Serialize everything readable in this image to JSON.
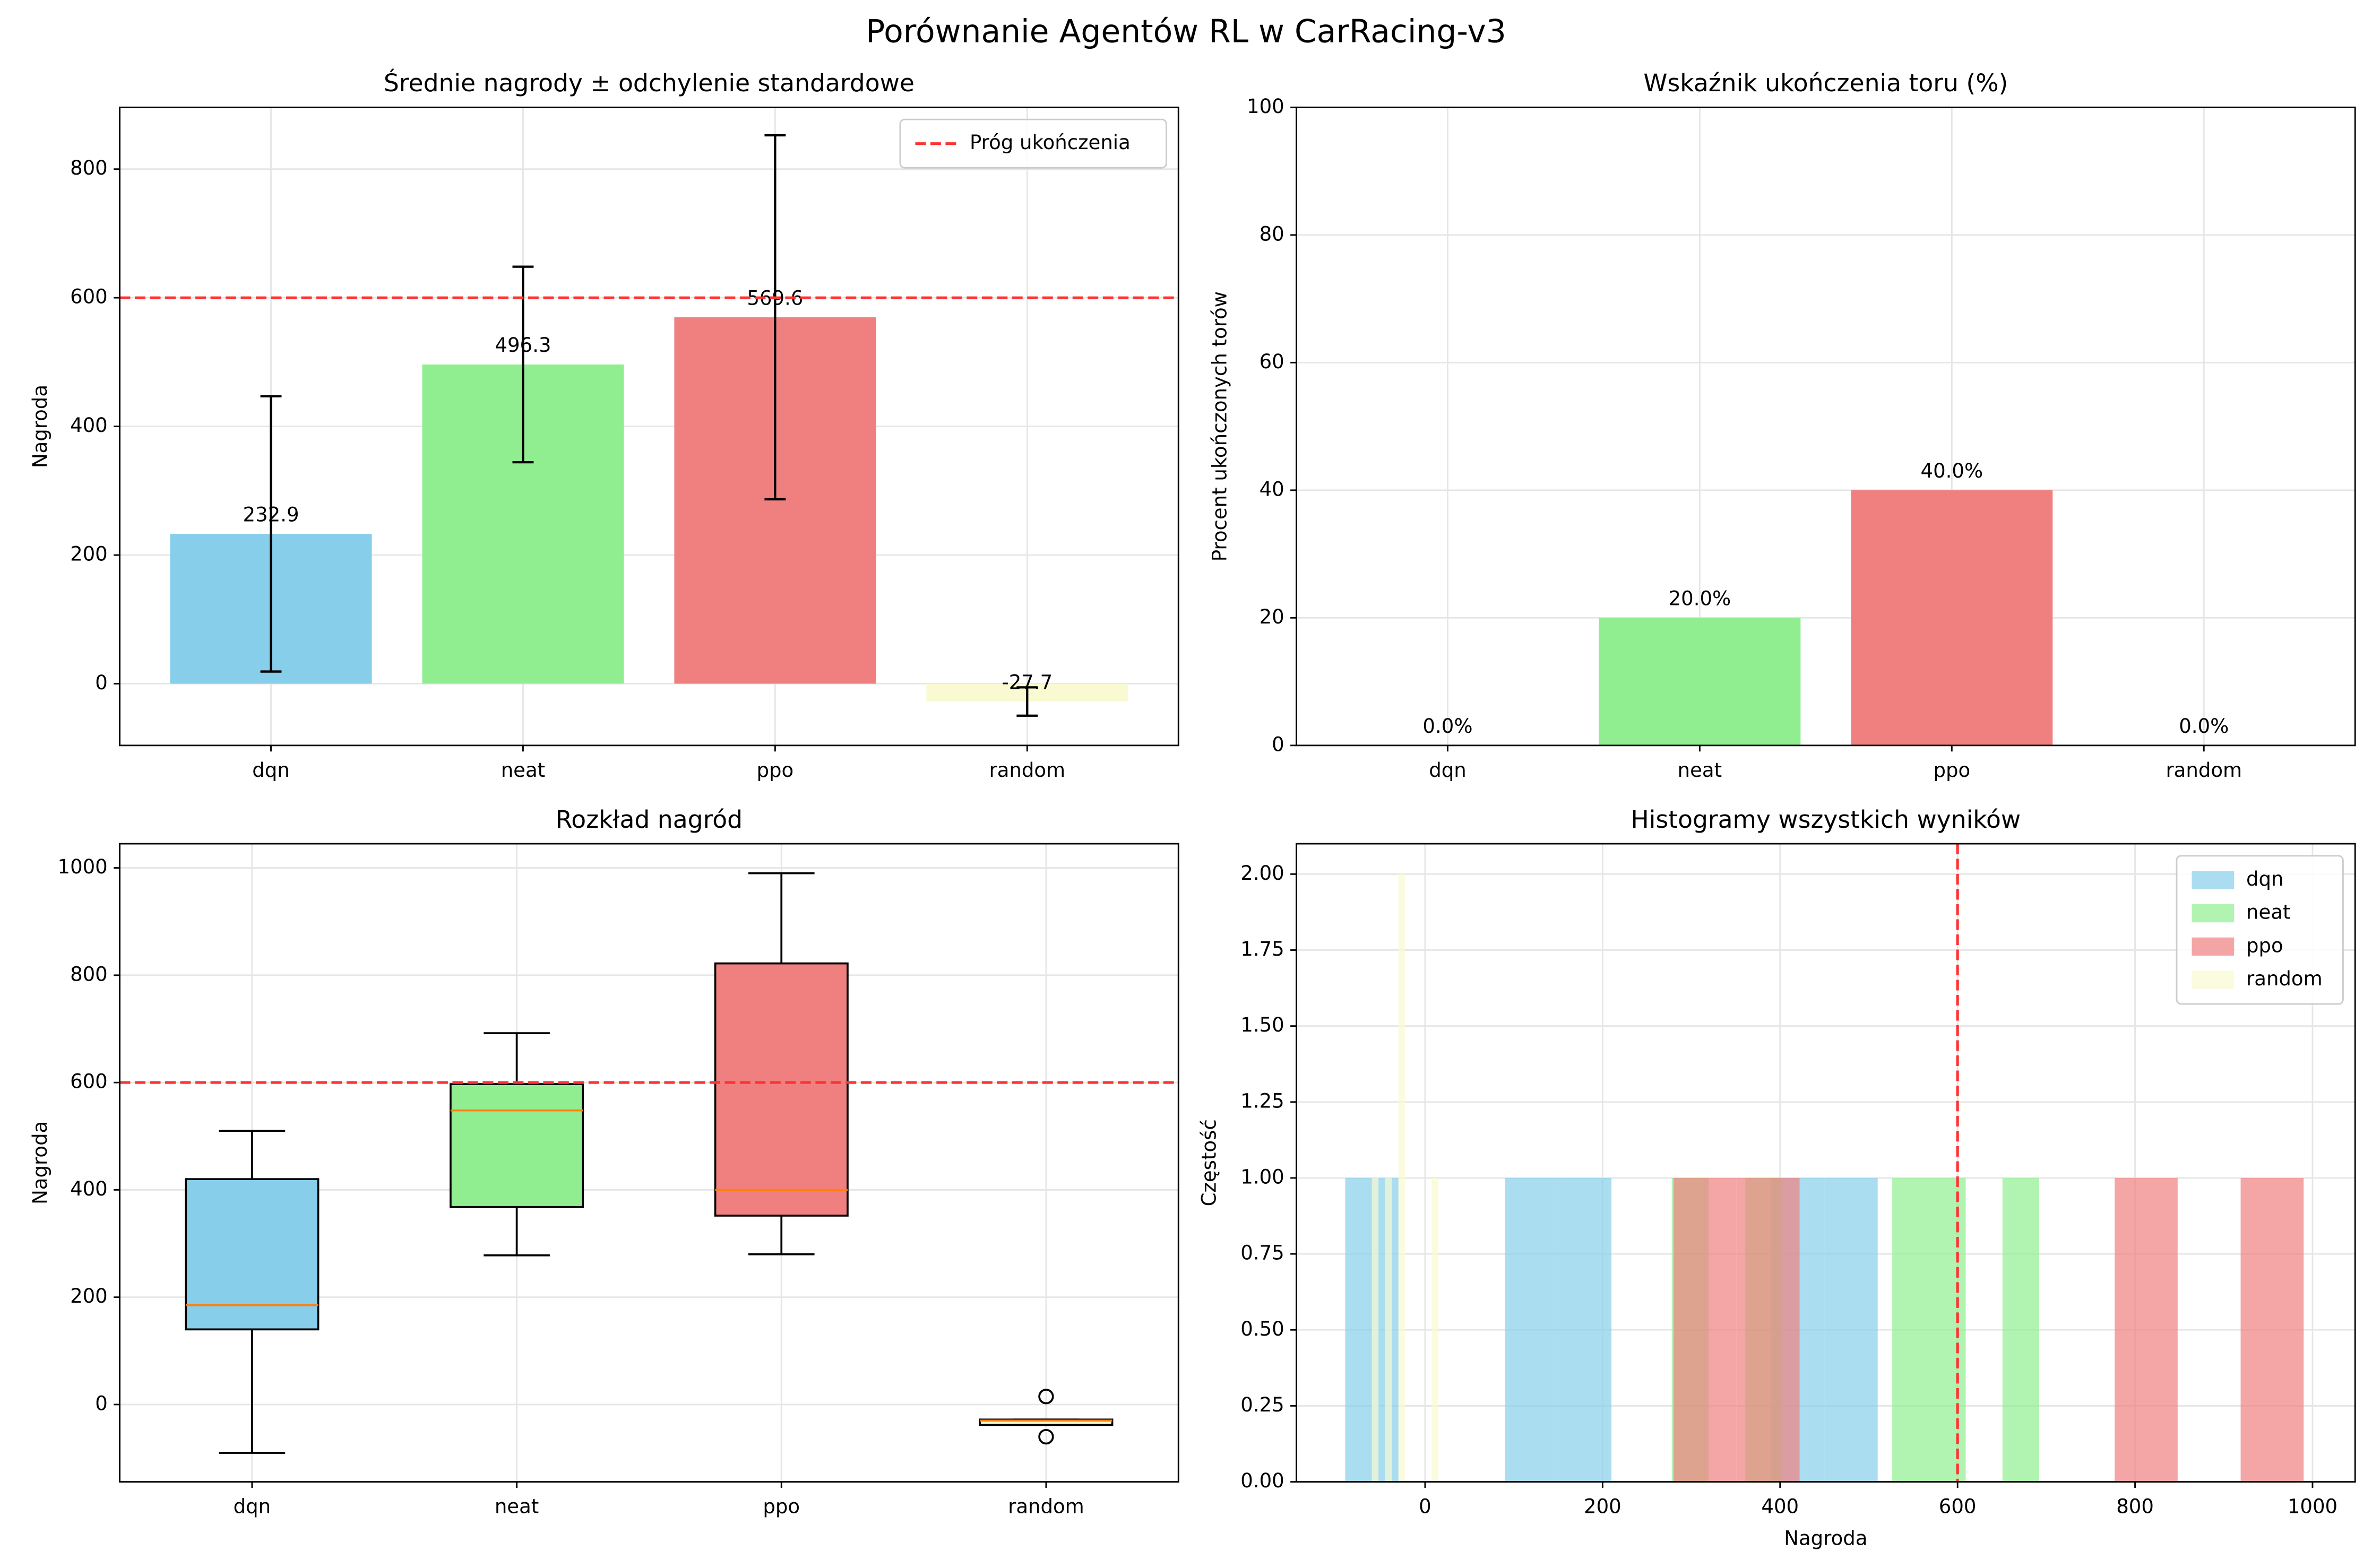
{
  "title": "Porównanie Agentów RL w CarRacing-v3",
  "chart_data": [
    {
      "type": "bar",
      "title": "Średnie nagrody ± odchylenie standardowe",
      "ylabel": "Nagroda",
      "categories": [
        "dqn",
        "neat",
        "ppo",
        "random"
      ],
      "values": [
        232.9,
        496.3,
        569.6,
        -27.7
      ],
      "errors": [
        214,
        152,
        283,
        22
      ],
      "colors": [
        "#87ceeb",
        "#90ee90",
        "#f08080",
        "#fafad2"
      ],
      "threshold": {
        "value": 600,
        "label": "Próg ukończenia",
        "color": "#ff3333"
      },
      "legend": "upper right",
      "ylim": [
        -96,
        896
      ],
      "yticks": [
        0,
        200,
        400,
        600,
        800
      ],
      "grid": true
    },
    {
      "type": "bar",
      "title": "Wskaźnik ukończenia toru (%)",
      "ylabel": "Procent ukończonych torów",
      "categories": [
        "dqn",
        "neat",
        "ppo",
        "random"
      ],
      "values": [
        0,
        20,
        40,
        0
      ],
      "value_labels": [
        "0.0%",
        "20.0%",
        "40.0%",
        "0.0%"
      ],
      "colors": [
        "#87ceeb",
        "#90ee90",
        "#f08080",
        "#fafad2"
      ],
      "ylim": [
        0,
        100
      ],
      "yticks": [
        0,
        20,
        40,
        60,
        80,
        100
      ],
      "grid": true
    },
    {
      "type": "box",
      "title": "Rozkład nagród",
      "ylabel": "Nagroda",
      "categories": [
        "dqn",
        "neat",
        "ppo",
        "random"
      ],
      "boxes": [
        {
          "min": -90,
          "q1": 140,
          "median": 185,
          "q3": 420,
          "max": 510,
          "outliers": []
        },
        {
          "min": 278,
          "q1": 368,
          "median": 548,
          "q3": 597,
          "max": 692,
          "outliers": []
        },
        {
          "min": 280,
          "q1": 352,
          "median": 400,
          "q3": 822,
          "max": 990,
          "outliers": []
        },
        {
          "min": -38,
          "q1": -38,
          "median": -30,
          "q3": -28,
          "max": -28,
          "outliers": [
            15,
            -60
          ]
        }
      ],
      "colors": [
        "#87ceeb",
        "#90ee90",
        "#f08080",
        "#fafad2"
      ],
      "median_color": "#ff7f0e",
      "threshold": {
        "value": 600,
        "color": "#ff3333"
      },
      "ylim": [
        -144,
        1045
      ],
      "yticks": [
        0,
        200,
        400,
        600,
        800,
        1000
      ],
      "grid": true
    },
    {
      "type": "histogram",
      "title": "Histogramy wszystkich wyników",
      "xlabel": "Nagroda",
      "ylabel": "Częstość",
      "series": [
        {
          "name": "dqn",
          "color": "#87ceeb",
          "bins": [
            -90,
            -30,
            30,
            90,
            150,
            210,
            270,
            330,
            390,
            450,
            510
          ],
          "counts": [
            1,
            0,
            0,
            1,
            1,
            0,
            0,
            0,
            1,
            1
          ]
        },
        {
          "name": "neat",
          "color": "#90ee90",
          "bins": [
            278,
            319.4,
            360.8,
            402.2,
            443.6,
            485,
            526.4,
            567.8,
            609.2,
            650.6,
            692
          ],
          "counts": [
            1,
            0,
            1,
            0,
            0,
            0,
            1,
            1,
            0,
            1
          ]
        },
        {
          "name": "ppo",
          "color": "#f08080",
          "bins": [
            280,
            351,
            422,
            493,
            564,
            635,
            706,
            777,
            848,
            919,
            990
          ],
          "counts": [
            1,
            1,
            0,
            0,
            0,
            0,
            0,
            1,
            0,
            1
          ]
        },
        {
          "name": "random",
          "color": "#fafad2",
          "bins": [
            -60,
            -52.5,
            -45,
            -37.5,
            -30,
            -22.5,
            -15,
            -7.5,
            0,
            7.5,
            15
          ],
          "counts": [
            1,
            0,
            1,
            0,
            2,
            0,
            0,
            0,
            0,
            1
          ]
        }
      ],
      "alpha": 0.7,
      "threshold": {
        "value": 600,
        "color": "#ff3333"
      },
      "legend": "upper right",
      "xlim": [
        -145,
        1048
      ],
      "xticks": [
        0,
        200,
        400,
        600,
        800,
        1000
      ],
      "ylim": [
        0,
        2.1
      ],
      "yticks": [
        {
          "value": 0,
          "label": "0.00"
        },
        {
          "value": 0.25,
          "label": "0.25"
        },
        {
          "value": 0.5,
          "label": "0.50"
        },
        {
          "value": 0.75,
          "label": "0.75"
        },
        {
          "value": 1,
          "label": "1.00"
        },
        {
          "value": 1.25,
          "label": "1.25"
        },
        {
          "value": 1.5,
          "label": "1.50"
        },
        {
          "value": 1.75,
          "label": "1.75"
        },
        {
          "value": 2,
          "label": "2.00"
        }
      ],
      "grid": true
    }
  ]
}
